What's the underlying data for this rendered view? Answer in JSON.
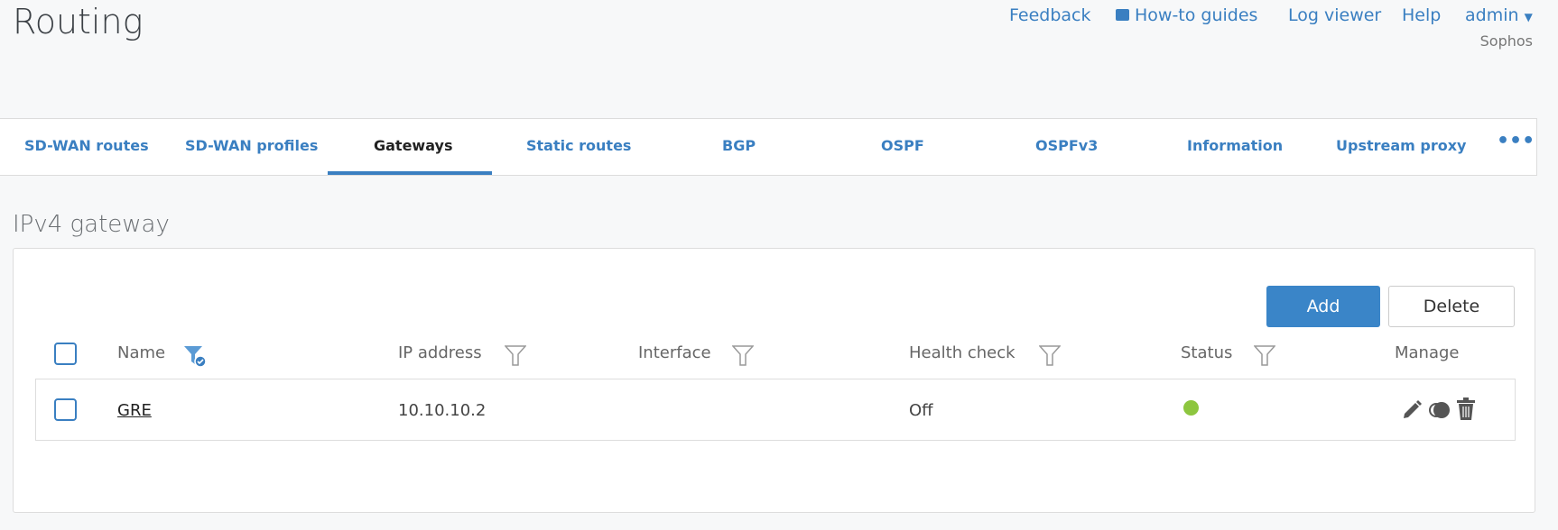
{
  "page": {
    "title": "Routing",
    "section_title": "IPv4 gateway"
  },
  "header": {
    "links": [
      "Feedback",
      "How-to guides",
      "Log viewer",
      "Help"
    ],
    "user": "admin",
    "org": "Sophos"
  },
  "tabs": [
    {
      "label": "SD-WAN routes"
    },
    {
      "label": "SD-WAN profiles"
    },
    {
      "label": "Gateways",
      "active": true
    },
    {
      "label": "Static routes"
    },
    {
      "label": "BGP"
    },
    {
      "label": "OSPF"
    },
    {
      "label": "OSPFv3"
    },
    {
      "label": "Information"
    },
    {
      "label": "Upstream proxy"
    }
  ],
  "toolbar": {
    "add": "Add",
    "delete": "Delete"
  },
  "table": {
    "columns": [
      "Name",
      "IP address",
      "Interface",
      "Health check",
      "Status",
      "Manage"
    ],
    "rows": [
      {
        "name": "GRE",
        "ip": "10.10.10.2",
        "interface": "",
        "health_check": "Off",
        "status": "active"
      }
    ]
  },
  "colors": {
    "accent": "#3a7fc1",
    "status_ok": "#8dc63f"
  }
}
